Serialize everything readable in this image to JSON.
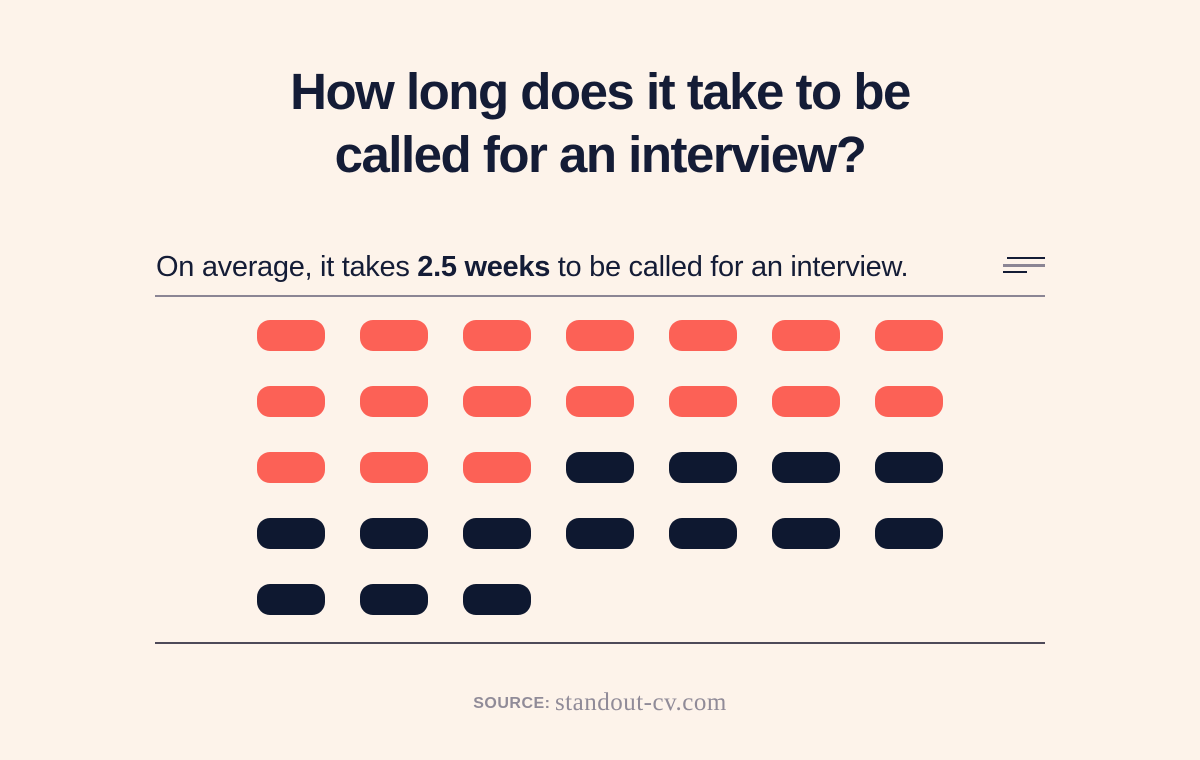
{
  "page": {
    "background_color": "#FDF3EA",
    "title_line1": "How long does it take to be",
    "title_line2": "called for an interview?",
    "subtitle": {
      "prefix": "On average, it takes ",
      "highlight": "2.5 weeks",
      "suffix": " to be called for an interview."
    },
    "source": {
      "label": "SOURCE:",
      "value": "standout-cv.com"
    }
  },
  "chart_data": {
    "type": "pictograph",
    "title": "How long does it take to be called for an interview?",
    "annotation": "On average, it takes 2.5 weeks to be called for an interview.",
    "unit": "day",
    "columns": 7,
    "total_units": 31,
    "highlighted_units": 17,
    "plain_units": 14,
    "average_weeks": 2.5,
    "rows": [
      [
        "highlight",
        "highlight",
        "highlight",
        "highlight",
        "highlight",
        "highlight",
        "highlight"
      ],
      [
        "highlight",
        "highlight",
        "highlight",
        "highlight",
        "highlight",
        "highlight",
        "highlight"
      ],
      [
        "highlight",
        "highlight",
        "highlight",
        "plain",
        "plain",
        "plain",
        "plain"
      ],
      [
        "plain",
        "plain",
        "plain",
        "plain",
        "plain",
        "plain",
        "plain"
      ],
      [
        "plain",
        "plain",
        "plain"
      ]
    ],
    "colors": {
      "highlight": "#FC6156",
      "plain": "#0E1830",
      "text": "#141C36",
      "rule_top": "#8B8594",
      "rule_bottom": "#4E4A59",
      "source_text": "#908B98"
    },
    "legend_position": "none",
    "grid": "off"
  }
}
